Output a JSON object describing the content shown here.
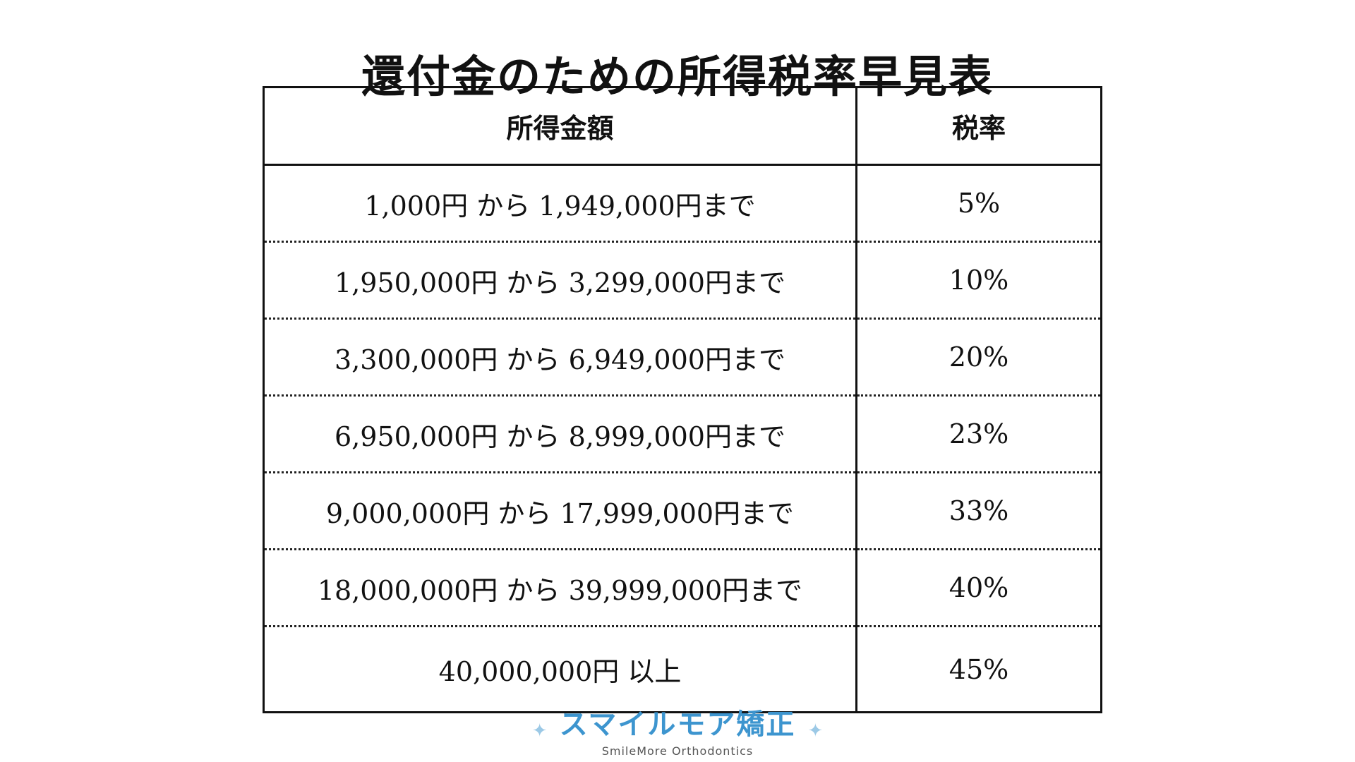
{
  "title": "還付金のための所得税率早見表",
  "table": {
    "headers": [
      "所得金額",
      "税率"
    ],
    "rows": [
      {
        "income": "1,000円 から 1,949,000円まで",
        "rate": "5%"
      },
      {
        "income": "1,950,000円 から 3,299,000円まで",
        "rate": "10%"
      },
      {
        "income": "3,300,000円 から 6,949,000円まで",
        "rate": "20%"
      },
      {
        "income": "6,950,000円 から 8,999,000円まで",
        "rate": "23%"
      },
      {
        "income": "9,000,000円 から 17,999,000円まで",
        "rate": "33%"
      },
      {
        "income": "18,000,000円 から 39,999,000円まで",
        "rate": "40%"
      },
      {
        "income": "40,000,000円 以上",
        "rate": "45%"
      }
    ]
  },
  "brand": {
    "name": "スマイルモア矯正",
    "subtitle": "SmileMore Orthodontics",
    "sparkle_icon": "sparkle-icon",
    "color": "#3d95cf"
  }
}
